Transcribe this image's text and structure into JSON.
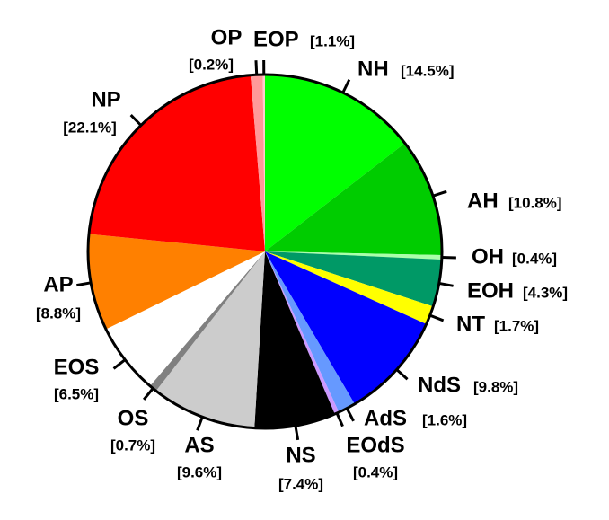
{
  "chart_data": {
    "type": "pie",
    "categories": [
      "NH",
      "AH",
      "OH",
      "EOH",
      "NT",
      "NdS",
      "AdS",
      "EOdS",
      "NS",
      "AS",
      "OS",
      "EOS",
      "AP",
      "NP",
      "EOP",
      "OP"
    ],
    "values": [
      14.5,
      10.8,
      0.4,
      4.3,
      1.7,
      9.8,
      1.6,
      0.4,
      7.4,
      9.6,
      0.7,
      6.5,
      8.8,
      22.1,
      1.1,
      0.2
    ],
    "value_labels": [
      "[14.5%]",
      "[10.8%]",
      "[0.4%]",
      "[4.3%]",
      "[1.7%]",
      "[9.8%]",
      "[1.6%]",
      "[0.4%]",
      "[7.4%]",
      "[9.6%]",
      "[0.7%]",
      "[6.5%]",
      "[8.8%]",
      "[22.1%]",
      "[1.1%]",
      "[0.2%]"
    ],
    "colors": [
      "#00ff00",
      "#00cc00",
      "#aaffaa",
      "#009966",
      "#ffff00",
      "#0000ff",
      "#6699ff",
      "#cc99ff",
      "#000000",
      "#cccccc",
      "#808080",
      "#ffffff",
      "#ff8000",
      "#ff0000",
      "#ff9999",
      "#ffcccc"
    ]
  }
}
